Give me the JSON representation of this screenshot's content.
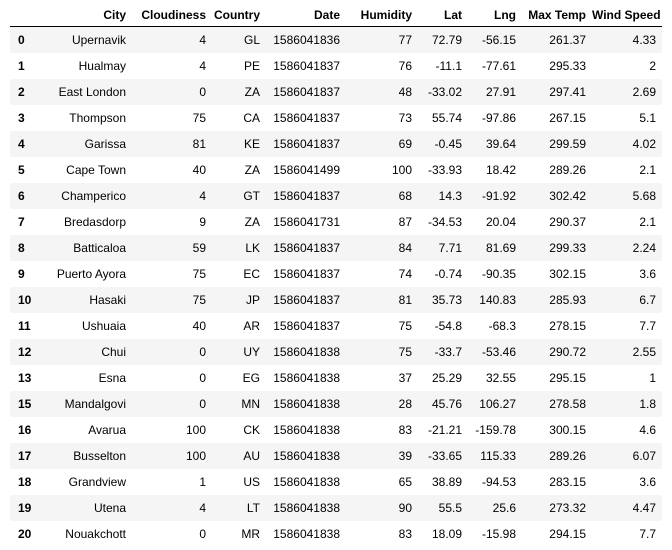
{
  "table": {
    "columns": [
      "",
      "City",
      "Cloudiness",
      "Country",
      "Date",
      "Humidity",
      "Lat",
      "Lng",
      "Max Temp",
      "Wind Speed"
    ],
    "rows": [
      [
        "0",
        "Upernavik",
        "4",
        "GL",
        "1586041836",
        "77",
        "72.79",
        "-56.15",
        "261.37",
        "4.33"
      ],
      [
        "1",
        "Hualmay",
        "4",
        "PE",
        "1586041837",
        "76",
        "-11.1",
        "-77.61",
        "295.33",
        "2"
      ],
      [
        "2",
        "East London",
        "0",
        "ZA",
        "1586041837",
        "48",
        "-33.02",
        "27.91",
        "297.41",
        "2.69"
      ],
      [
        "3",
        "Thompson",
        "75",
        "CA",
        "1586041837",
        "73",
        "55.74",
        "-97.86",
        "267.15",
        "5.1"
      ],
      [
        "4",
        "Garissa",
        "81",
        "KE",
        "1586041837",
        "69",
        "-0.45",
        "39.64",
        "299.59",
        "4.02"
      ],
      [
        "5",
        "Cape Town",
        "40",
        "ZA",
        "1586041499",
        "100",
        "-33.93",
        "18.42",
        "289.26",
        "2.1"
      ],
      [
        "6",
        "Champerico",
        "4",
        "GT",
        "1586041837",
        "68",
        "14.3",
        "-91.92",
        "302.42",
        "5.68"
      ],
      [
        "7",
        "Bredasdorp",
        "9",
        "ZA",
        "1586041731",
        "87",
        "-34.53",
        "20.04",
        "290.37",
        "2.1"
      ],
      [
        "8",
        "Batticaloa",
        "59",
        "LK",
        "1586041837",
        "84",
        "7.71",
        "81.69",
        "299.33",
        "2.24"
      ],
      [
        "9",
        "Puerto Ayora",
        "75",
        "EC",
        "1586041837",
        "74",
        "-0.74",
        "-90.35",
        "302.15",
        "3.6"
      ],
      [
        "10",
        "Hasaki",
        "75",
        "JP",
        "1586041837",
        "81",
        "35.73",
        "140.83",
        "285.93",
        "6.7"
      ],
      [
        "11",
        "Ushuaia",
        "40",
        "AR",
        "1586041837",
        "75",
        "-54.8",
        "-68.3",
        "278.15",
        "7.7"
      ],
      [
        "12",
        "Chui",
        "0",
        "UY",
        "1586041838",
        "75",
        "-33.7",
        "-53.46",
        "290.72",
        "2.55"
      ],
      [
        "13",
        "Esna",
        "0",
        "EG",
        "1586041838",
        "37",
        "25.29",
        "32.55",
        "295.15",
        "1"
      ],
      [
        "15",
        "Mandalgovi",
        "0",
        "MN",
        "1586041838",
        "28",
        "45.76",
        "106.27",
        "278.58",
        "1.8"
      ],
      [
        "16",
        "Avarua",
        "100",
        "CK",
        "1586041838",
        "83",
        "-21.21",
        "-159.78",
        "300.15",
        "4.6"
      ],
      [
        "17",
        "Busselton",
        "100",
        "AU",
        "1586041838",
        "39",
        "-33.65",
        "115.33",
        "289.26",
        "6.07"
      ],
      [
        "18",
        "Grandview",
        "1",
        "US",
        "1586041838",
        "65",
        "38.89",
        "-94.53",
        "283.15",
        "3.6"
      ],
      [
        "19",
        "Utena",
        "4",
        "LT",
        "1586041838",
        "90",
        "55.5",
        "25.6",
        "273.32",
        "4.47"
      ],
      [
        "20",
        "Nouakchott",
        "0",
        "MR",
        "1586041838",
        "83",
        "18.09",
        "-15.98",
        "294.15",
        "7.7"
      ]
    ]
  }
}
